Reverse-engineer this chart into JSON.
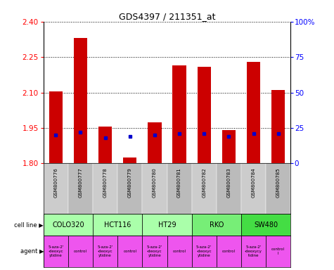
{
  "title": "GDS4397 / 211351_at",
  "samples": [
    "GSM800776",
    "GSM800777",
    "GSM800778",
    "GSM800779",
    "GSM800780",
    "GSM800781",
    "GSM800782",
    "GSM800783",
    "GSM800784",
    "GSM800785"
  ],
  "transformed_counts": [
    2.105,
    2.33,
    1.955,
    1.825,
    1.975,
    2.215,
    2.21,
    1.94,
    2.23,
    2.11
  ],
  "percentile_ranks": [
    20,
    22,
    18,
    19,
    20,
    21,
    21,
    19,
    21,
    21
  ],
  "y_min": 1.8,
  "y_max": 2.4,
  "y_ticks": [
    1.8,
    1.95,
    2.1,
    2.25,
    2.4
  ],
  "right_y_labels": [
    "0",
    "25",
    "50",
    "75",
    "100%"
  ],
  "right_y_pcts": [
    0,
    25,
    50,
    75,
    100
  ],
  "cell_line_data": [
    {
      "name": "COLO320",
      "start": 0,
      "end": 2,
      "color": "#aaffaa"
    },
    {
      "name": "HCT116",
      "start": 2,
      "end": 4,
      "color": "#aaffaa"
    },
    {
      "name": "HT29",
      "start": 4,
      "end": 6,
      "color": "#aaffaa"
    },
    {
      "name": "RKO",
      "start": 6,
      "end": 8,
      "color": "#77ee77"
    },
    {
      "name": "SW480",
      "start": 8,
      "end": 10,
      "color": "#44dd44"
    }
  ],
  "agent_data": [
    {
      "name": "5-aza-2'\n-deoxyc\nytidine",
      "start": 0,
      "end": 1
    },
    {
      "name": "control",
      "start": 1,
      "end": 2
    },
    {
      "name": "5-aza-2'\n-deoxyc\nytidine",
      "start": 2,
      "end": 3
    },
    {
      "name": "control",
      "start": 3,
      "end": 4
    },
    {
      "name": "5-aza-2'\n-deoxyc\nytidine",
      "start": 4,
      "end": 5
    },
    {
      "name": "control",
      "start": 5,
      "end": 6
    },
    {
      "name": "5-aza-2'\n-deoxyc\nytidine",
      "start": 6,
      "end": 7
    },
    {
      "name": "control",
      "start": 7,
      "end": 8
    },
    {
      "name": "5-aza-2'\n-deoxycy\ntidine",
      "start": 8,
      "end": 9
    },
    {
      "name": "control\nl",
      "start": 9,
      "end": 10
    }
  ],
  "agent_color": "#ee55ee",
  "bar_color": "#cc0000",
  "dot_color": "#0000cc",
  "bar_width": 0.55,
  "background_color": "#ffffff",
  "sample_bg_colors": [
    "#cccccc",
    "#bbbbbb",
    "#cccccc",
    "#bbbbbb",
    "#cccccc",
    "#bbbbbb",
    "#cccccc",
    "#bbbbbb",
    "#cccccc",
    "#bbbbbb"
  ]
}
